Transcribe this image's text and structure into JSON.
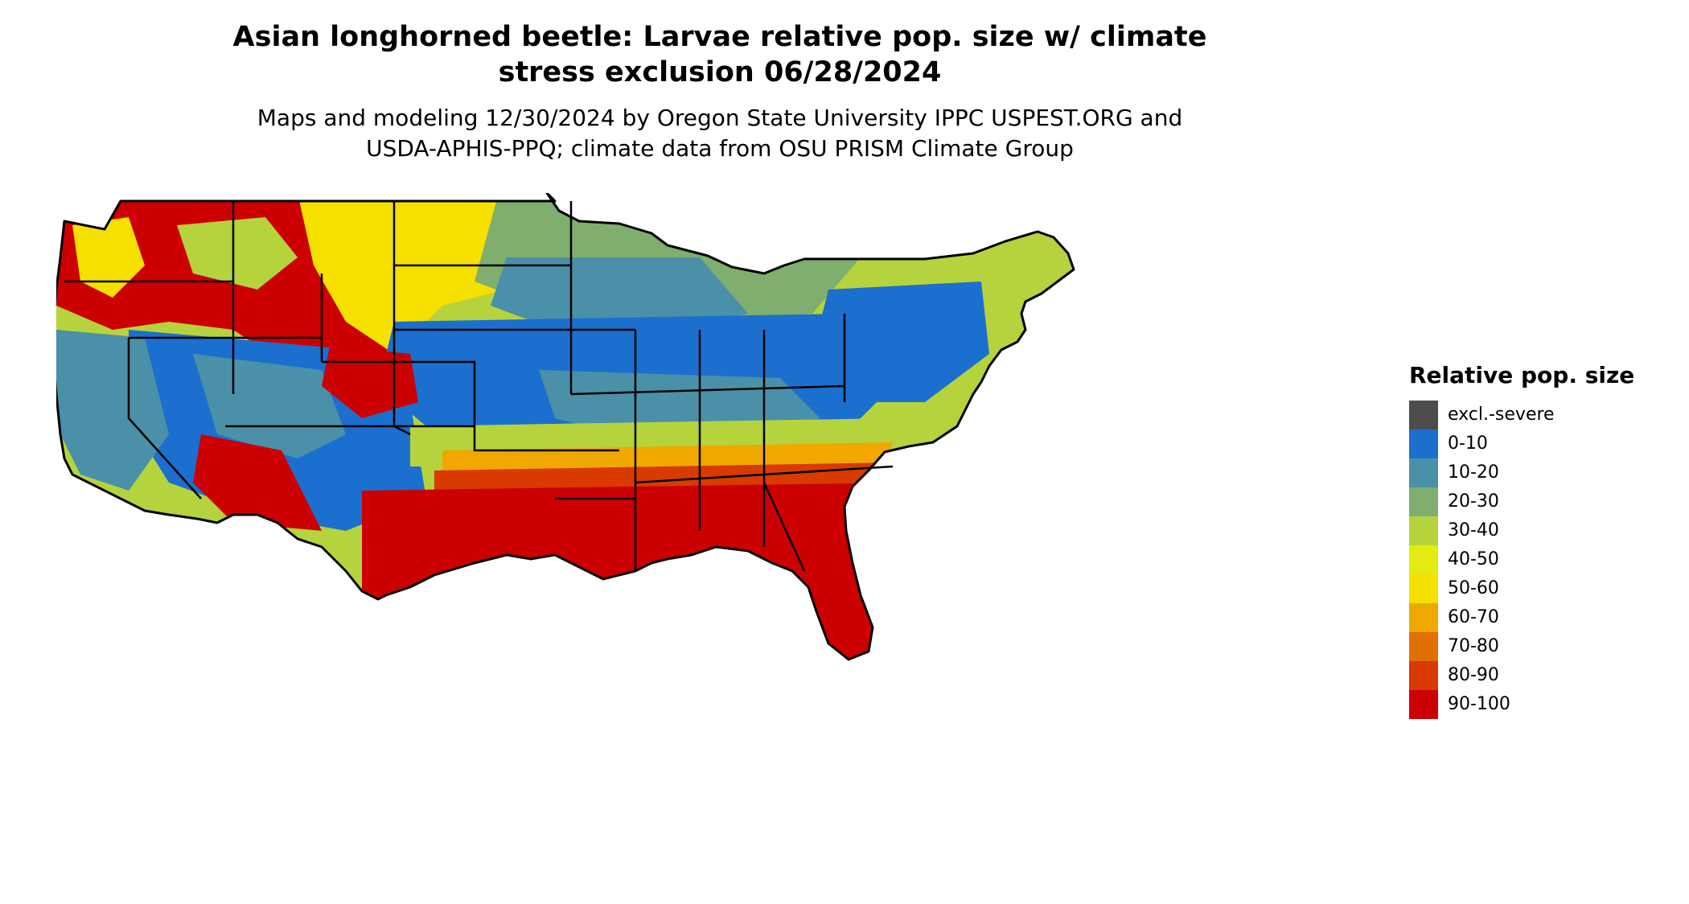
{
  "title_line1": "Asian longhorned beetle: Larvae relative pop. size w/ climate",
  "title_line2": "stress exclusion 06/28/2024",
  "subtitle_line1": "Maps and modeling 12/30/2024 by Oregon State University IPPC USPEST.ORG and",
  "subtitle_line2": "USDA-APHIS-PPQ; climate data from OSU PRISM Climate Group",
  "map": {
    "region": "Contiguous United States",
    "borders": "state boundaries",
    "zones": [
      {
        "area": "Pacific Northwest and northern Rockies",
        "class": "80-90 / 90-100",
        "color": "#cc0000"
      },
      {
        "area": "Northern Great Plains",
        "class": "50-60",
        "color": "#f5e000"
      },
      {
        "area": "Central Plains and Midwest",
        "class": "0-10",
        "color": "#1b6fcf"
      },
      {
        "area": "Upper Midwest and Northeast",
        "class": "10-20 / 30-40",
        "color": "#4a90a8"
      },
      {
        "area": "Southern Plains and Southeast",
        "class": "90-100",
        "color": "#cc0000"
      },
      {
        "area": "Southwest",
        "class": "0-10 / 90-100",
        "color": "#1b6fcf"
      }
    ]
  },
  "legend": {
    "title": "Relative pop. size",
    "items": [
      {
        "label": "excl.-severe",
        "color": "#4d4d4d"
      },
      {
        "label": "0-10",
        "color": "#1b6fcf"
      },
      {
        "label": "10-20",
        "color": "#4a90a8"
      },
      {
        "label": "20-30",
        "color": "#7fae6e"
      },
      {
        "label": "30-40",
        "color": "#b5d33c"
      },
      {
        "label": "40-50",
        "color": "#e2ec10"
      },
      {
        "label": "50-60",
        "color": "#f5e000"
      },
      {
        "label": "60-70",
        "color": "#f0a800"
      },
      {
        "label": "70-80",
        "color": "#e07000"
      },
      {
        "label": "80-90",
        "color": "#d83a00"
      },
      {
        "label": "90-100",
        "color": "#cc0000"
      }
    ]
  }
}
